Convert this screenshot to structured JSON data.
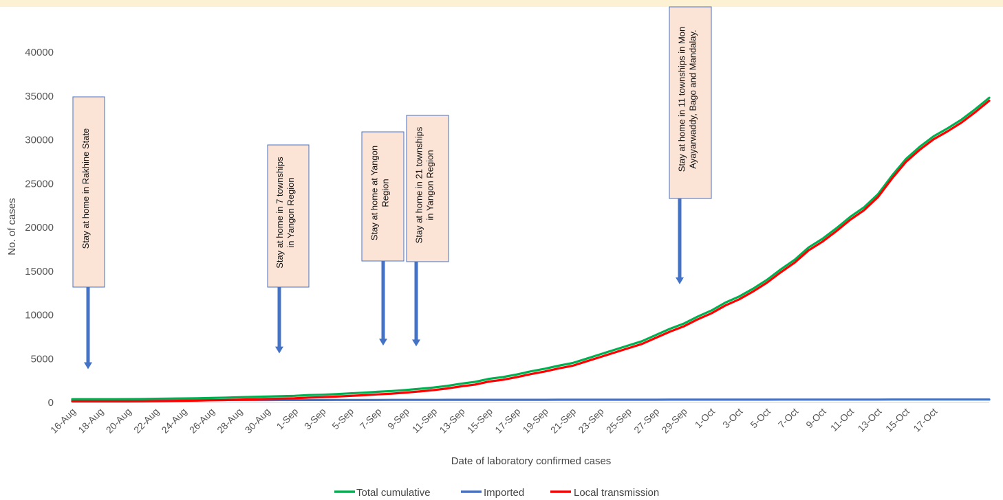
{
  "chart_data": {
    "type": "line",
    "title": "",
    "xlabel": "Date of laboratory confirmed cases",
    "ylabel": "No. of cases",
    "ylim": [
      0,
      40000
    ],
    "yticks": [
      0,
      5000,
      10000,
      15000,
      20000,
      25000,
      30000,
      35000,
      40000
    ],
    "xtick_labels": [
      "16-Aug",
      "18-Aug",
      "20-Aug",
      "22-Aug",
      "24-Aug",
      "26-Aug",
      "28-Aug",
      "30-Aug",
      "1-Sep",
      "3-Sep",
      "5-Sep",
      "7-Sep",
      "9-Sep",
      "11-Sep",
      "13-Sep",
      "15-Sep",
      "17-Sep",
      "19-Sep",
      "21-Sep",
      "23-Sep",
      "25-Sep",
      "27-Sep",
      "29-Sep",
      "1-Oct",
      "3-Oct",
      "5-Oct",
      "7-Oct",
      "9-Oct",
      "11-Oct",
      "13-Oct",
      "15-Oct",
      "17-Oct"
    ],
    "x_start": "16-Aug",
    "x_end": "17-Oct",
    "grid": false,
    "legend_position": "bottom",
    "series": [
      {
        "name": "Total cumulative",
        "color": "#00b050",
        "values": [
          375,
          376,
          378,
          380,
          382,
          390,
          420,
          440,
          460,
          480,
          520,
          550,
          600,
          640,
          680,
          710,
          760,
          850,
          890,
          960,
          1040,
          1120,
          1220,
          1310,
          1430,
          1560,
          1710,
          1900,
          2150,
          2350,
          2700,
          2900,
          3200,
          3550,
          3850,
          4200,
          4500,
          5000,
          5500,
          6000,
          6500,
          7000,
          7700,
          8400,
          9000,
          9800,
          10500,
          11400,
          12100,
          13000,
          14000,
          15200,
          16300,
          17700,
          18700,
          19900,
          21200,
          22300,
          23800,
          25900,
          27800,
          29200,
          30400,
          31300,
          32300,
          33500,
          34800
        ]
      },
      {
        "name": "Imported",
        "color": "#4472c4",
        "values": [
          250,
          252,
          254,
          256,
          258,
          260,
          262,
          264,
          266,
          268,
          270,
          272,
          274,
          276,
          278,
          280,
          282,
          284,
          286,
          288,
          290,
          292,
          294,
          296,
          298,
          300,
          301,
          302,
          303,
          304,
          305,
          306,
          307,
          308,
          309,
          310,
          311,
          312,
          313,
          314,
          315,
          316,
          317,
          318,
          319,
          320,
          321,
          322,
          323,
          324,
          325,
          326,
          327,
          328,
          329,
          330,
          331,
          332,
          333,
          334,
          335,
          336,
          337,
          338,
          339,
          340,
          341
        ]
      },
      {
        "name": "Local transmission",
        "color": "#ff0000",
        "values": [
          125,
          124,
          124,
          124,
          124,
          130,
          158,
          176,
          194,
          212,
          250,
          278,
          326,
          364,
          402,
          430,
          478,
          566,
          604,
          672,
          750,
          828,
          926,
          1014,
          1132,
          1260,
          1409,
          1598,
          1847,
          2046,
          2395,
          2594,
          2893,
          3242,
          3541,
          3890,
          4189,
          4688,
          5187,
          5686,
          6185,
          6684,
          7383,
          8082,
          8681,
          9480,
          10179,
          11078,
          11777,
          12676,
          13675,
          14874,
          15973,
          17372,
          18371,
          19570,
          20869,
          21968,
          23467,
          25566,
          27465,
          28864,
          30063,
          30962,
          31961,
          33160,
          34459
        ]
      }
    ],
    "annotations": [
      {
        "id": "rakhine",
        "text": "Stay at home  in Rakhine State",
        "target_date": "16-Aug",
        "target_value": 3800
      },
      {
        "id": "seven-townships",
        "text": "Stay at home in  7 townships\nin Yangon Region",
        "target_date": "26-Aug",
        "target_value": 5600
      },
      {
        "id": "yangon-region",
        "text": "Stay at home  at Yangon\nRegion",
        "target_date": "4-Sep",
        "target_value": 6500
      },
      {
        "id": "twentyone-townships",
        "text": "Stay at home in  21 townships\nin Yangon Region",
        "target_date": "7-Sep",
        "target_value": 6400
      },
      {
        "id": "eleven-townships",
        "text": "Stay at home in 11 townships in Mon\nAyayarwaddy, Bago and Mandalay.",
        "target_date": "24-Sep",
        "target_value": 13500
      }
    ]
  }
}
